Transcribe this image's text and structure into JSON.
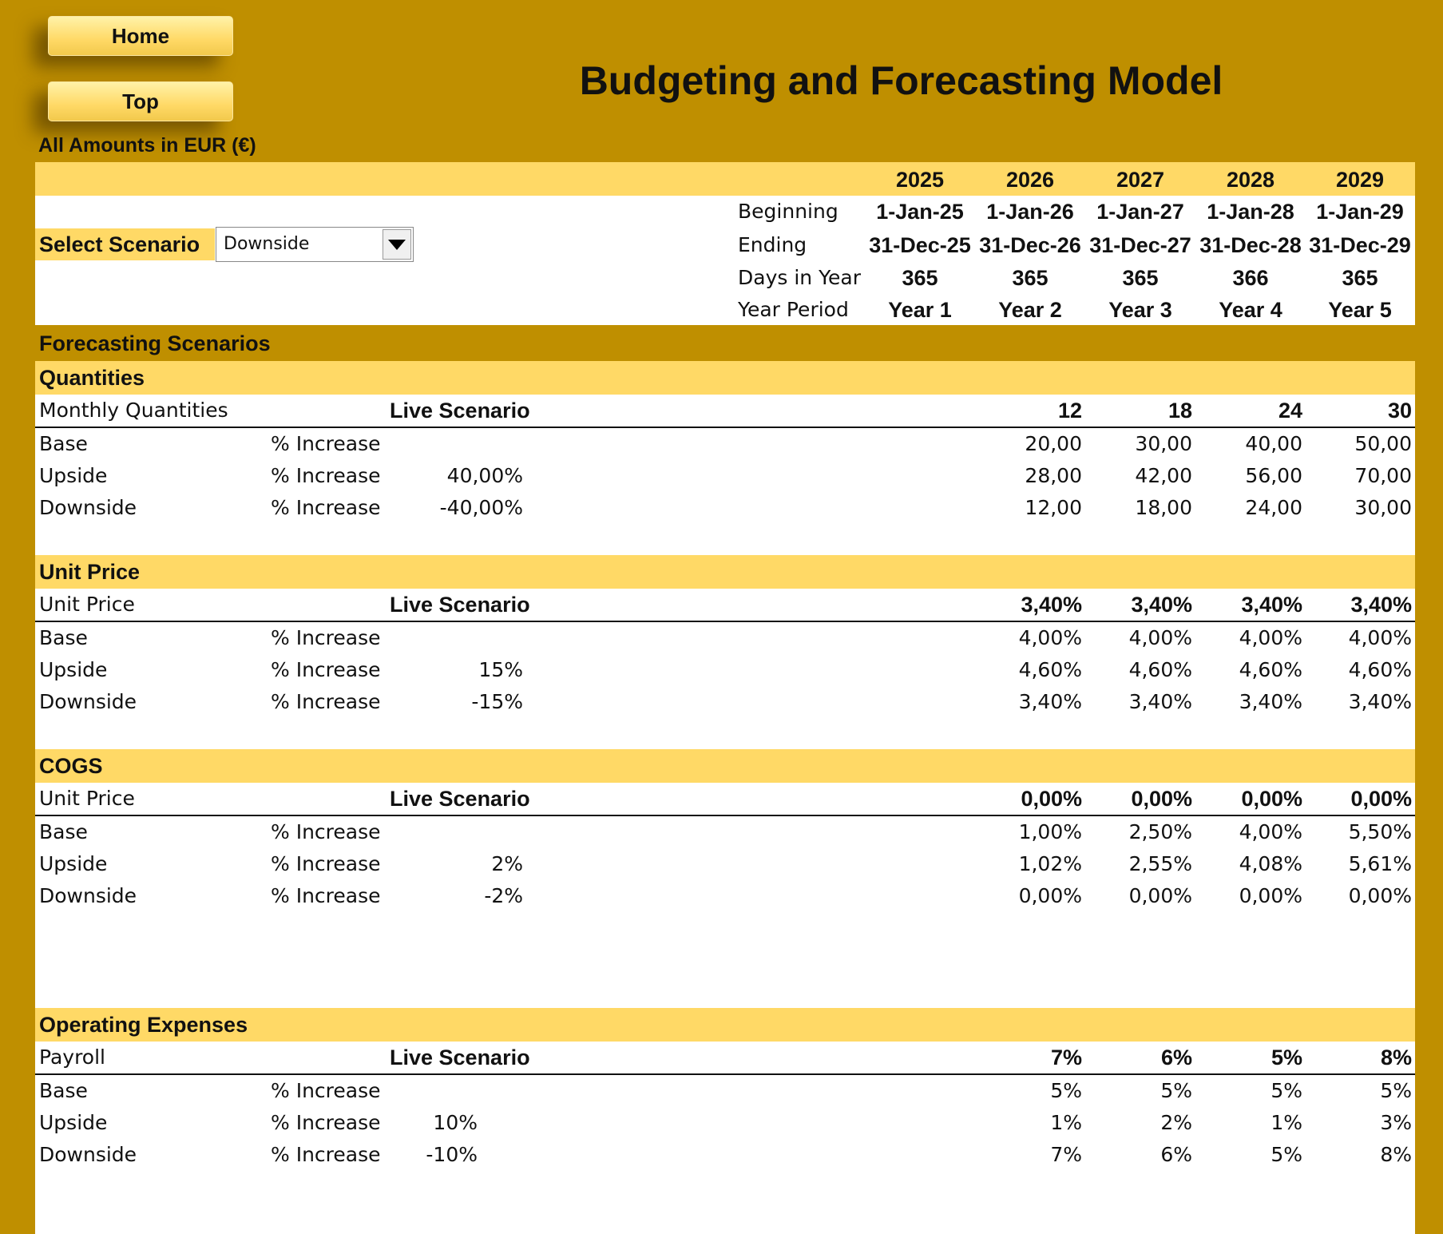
{
  "nav": {
    "home": "Home",
    "top": "Top"
  },
  "title": "Budgeting and Forecasting Model",
  "currency_note": "All Amounts in  EUR (€)",
  "years": [
    "2025",
    "2026",
    "2027",
    "2028",
    "2029"
  ],
  "timeline": {
    "beginning_label": "Beginning",
    "beginning": [
      "1-Jan-25",
      "1-Jan-26",
      "1-Jan-27",
      "1-Jan-28",
      "1-Jan-29"
    ],
    "ending_label": "Ending",
    "ending": [
      "31-Dec-25",
      "31-Dec-26",
      "31-Dec-27",
      "31-Dec-28",
      "31-Dec-29"
    ],
    "days_label": "Days in Year",
    "days": [
      "365",
      "365",
      "365",
      "366",
      "365"
    ],
    "period_label": "Year Period",
    "period": [
      "Year 1",
      "Year 2",
      "Year 3",
      "Year 4",
      "Year 5"
    ]
  },
  "scenario": {
    "label": "Select Scenario",
    "value": "Downside"
  },
  "forecasting_title": "Forecasting Scenarios",
  "sections": {
    "quantities": {
      "title": "Quantities",
      "live_label": "Monthly Quantities",
      "live_scenario": "Live Scenario",
      "live_values": [
        "",
        "12",
        "18",
        "24",
        "30"
      ],
      "rows": [
        {
          "name": "Base",
          "metric": "% Increase",
          "adj": "",
          "values": [
            "",
            "20,00",
            "30,00",
            "40,00",
            "50,00"
          ]
        },
        {
          "name": "Upside",
          "metric": "% Increase",
          "adj": "40,00%",
          "values": [
            "",
            "28,00",
            "42,00",
            "56,00",
            "70,00"
          ]
        },
        {
          "name": "Downside",
          "metric": "% Increase",
          "adj": "-40,00%",
          "values": [
            "",
            "12,00",
            "18,00",
            "24,00",
            "30,00"
          ]
        }
      ]
    },
    "unit_price": {
      "title": "Unit Price",
      "live_label": "Unit Price",
      "live_scenario": "Live Scenario",
      "live_values": [
        "",
        "3,40%",
        "3,40%",
        "3,40%",
        "3,40%"
      ],
      "rows": [
        {
          "name": "Base",
          "metric": "% Increase",
          "adj": "",
          "values": [
            "",
            "4,00%",
            "4,00%",
            "4,00%",
            "4,00%"
          ]
        },
        {
          "name": "Upside",
          "metric": "% Increase",
          "adj": "15%",
          "values": [
            "",
            "4,60%",
            "4,60%",
            "4,60%",
            "4,60%"
          ]
        },
        {
          "name": "Downside",
          "metric": "% Increase",
          "adj": "-15%",
          "values": [
            "",
            "3,40%",
            "3,40%",
            "3,40%",
            "3,40%"
          ]
        }
      ]
    },
    "cogs": {
      "title": "COGS",
      "live_label": "Unit Price",
      "live_scenario": "Live Scenario",
      "live_values": [
        "",
        "0,00%",
        "0,00%",
        "0,00%",
        "0,00%"
      ],
      "rows": [
        {
          "name": "Base",
          "metric": "% Increase",
          "adj": "",
          "values": [
            "",
            "1,00%",
            "2,50%",
            "4,00%",
            "5,50%"
          ]
        },
        {
          "name": "Upside",
          "metric": "% Increase",
          "adj": "2%",
          "values": [
            "",
            "1,02%",
            "2,55%",
            "4,08%",
            "5,61%"
          ]
        },
        {
          "name": "Downside",
          "metric": "% Increase",
          "adj": "-2%",
          "values": [
            "",
            "0,00%",
            "0,00%",
            "0,00%",
            "0,00%"
          ]
        }
      ]
    },
    "opex": {
      "title": "Operating Expenses",
      "live_label": "Payroll",
      "live_scenario": "Live Scenario",
      "live_values": [
        "",
        "7%",
        "6%",
        "5%",
        "8%"
      ],
      "rows": [
        {
          "name": "Base",
          "metric": "% Increase",
          "adj": "",
          "values": [
            "",
            "5%",
            "5%",
            "5%",
            "5%"
          ]
        },
        {
          "name": "Upside",
          "metric": "% Increase",
          "adj": "10%",
          "values": [
            "",
            "1%",
            "2%",
            "1%",
            "3%"
          ]
        },
        {
          "name": "Downside",
          "metric": "% Increase",
          "adj": "-10%",
          "values": [
            "",
            "7%",
            "6%",
            "5%",
            "8%"
          ]
        }
      ]
    }
  }
}
